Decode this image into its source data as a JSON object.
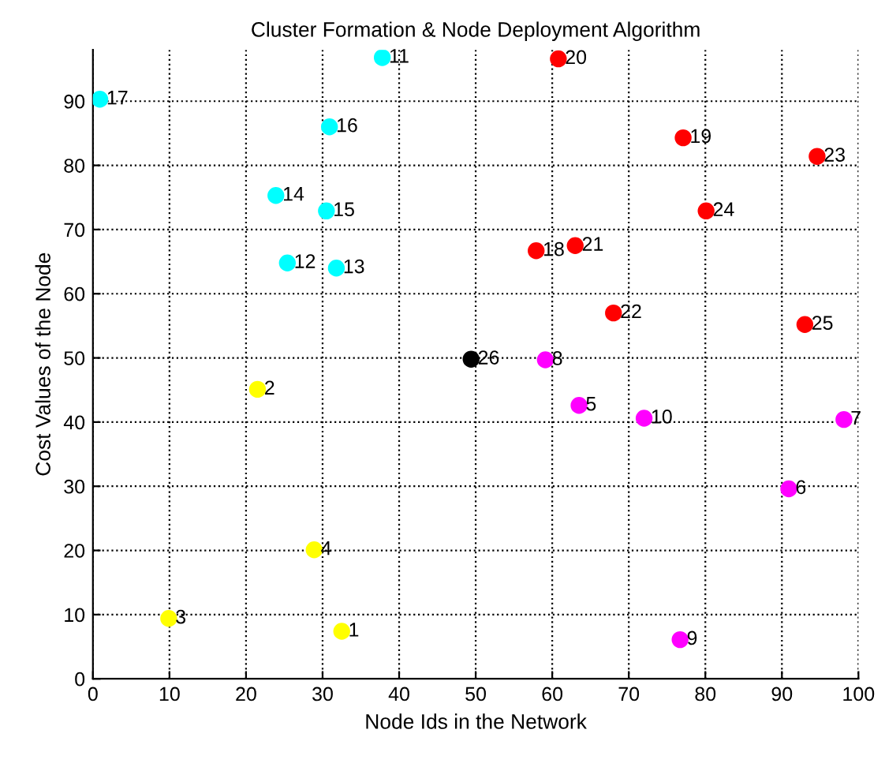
{
  "chart_data": {
    "type": "scatter",
    "title": "Cluster Formation & Node Deployment Algorithm",
    "xlabel": "Node Ids in the Network",
    "ylabel": "Cost Values of the Node",
    "xlim": [
      0,
      100
    ],
    "xticks": [
      0,
      10,
      20,
      30,
      40,
      50,
      60,
      70,
      80,
      90,
      100
    ],
    "ylim": [
      0,
      98
    ],
    "yticks": [
      0,
      10,
      20,
      30,
      40,
      50,
      60,
      70,
      80,
      90
    ],
    "grid": true,
    "marker": "circle",
    "series": [
      {
        "color": "#ffff00",
        "x": [
          32.5,
          21.5,
          9.9,
          28.9
        ],
        "values": [
          7.4,
          45.1,
          9.4,
          20.1
        ]
      },
      {
        "color": "#ff00ff",
        "x": [
          63.5,
          90.9,
          98.1,
          59.1,
          76.7,
          72.0
        ],
        "values": [
          42.6,
          29.6,
          40.4,
          49.7,
          6.1,
          40.6
        ]
      },
      {
        "color": "#00ffff",
        "x": [
          37.8,
          25.4,
          31.8,
          23.9,
          30.5,
          30.9,
          0.9
        ],
        "values": [
          96.8,
          64.8,
          64.0,
          75.3,
          72.9,
          86.0,
          90.3
        ]
      },
      {
        "color": "#ff0000",
        "x": [
          57.9,
          77.1,
          60.8,
          63.0,
          68.0,
          94.6,
          80.1,
          93.0
        ],
        "values": [
          66.7,
          84.3,
          96.6,
          67.5,
          57.0,
          81.4,
          72.9,
          55.2
        ]
      },
      {
        "color": "#000000",
        "x": [
          49.4
        ],
        "values": [
          49.8
        ]
      }
    ],
    "annotations": [
      {
        "text": "1",
        "x": 32.5,
        "y": 7.4
      },
      {
        "text": "2",
        "x": 21.5,
        "y": 45.1
      },
      {
        "text": "3",
        "x": 9.9,
        "y": 9.4
      },
      {
        "text": "4",
        "x": 28.9,
        "y": 20.1
      },
      {
        "text": "5",
        "x": 63.5,
        "y": 42.6
      },
      {
        "text": "6",
        "x": 90.9,
        "y": 29.6
      },
      {
        "text": "7",
        "x": 98.1,
        "y": 40.4
      },
      {
        "text": "8",
        "x": 59.1,
        "y": 49.7
      },
      {
        "text": "9",
        "x": 76.7,
        "y": 6.1
      },
      {
        "text": "10",
        "x": 72.0,
        "y": 40.6
      },
      {
        "text": "11",
        "x": 37.8,
        "y": 96.8
      },
      {
        "text": "12",
        "x": 25.4,
        "y": 64.8
      },
      {
        "text": "13",
        "x": 31.8,
        "y": 64.0
      },
      {
        "text": "14",
        "x": 23.9,
        "y": 75.3
      },
      {
        "text": "15",
        "x": 30.5,
        "y": 72.9
      },
      {
        "text": "16",
        "x": 30.9,
        "y": 86.0
      },
      {
        "text": "17",
        "x": 0.9,
        "y": 90.3
      },
      {
        "text": "18",
        "x": 57.9,
        "y": 66.7
      },
      {
        "text": "19",
        "x": 77.1,
        "y": 84.3
      },
      {
        "text": "20",
        "x": 60.8,
        "y": 96.6
      },
      {
        "text": "21",
        "x": 63.0,
        "y": 67.5
      },
      {
        "text": "22",
        "x": 68.0,
        "y": 57.0
      },
      {
        "text": "23",
        "x": 94.6,
        "y": 81.4
      },
      {
        "text": "24",
        "x": 80.1,
        "y": 72.9
      },
      {
        "text": "25",
        "x": 93.0,
        "y": 55.2
      },
      {
        "text": "26",
        "x": 49.4,
        "y": 49.8
      }
    ]
  }
}
